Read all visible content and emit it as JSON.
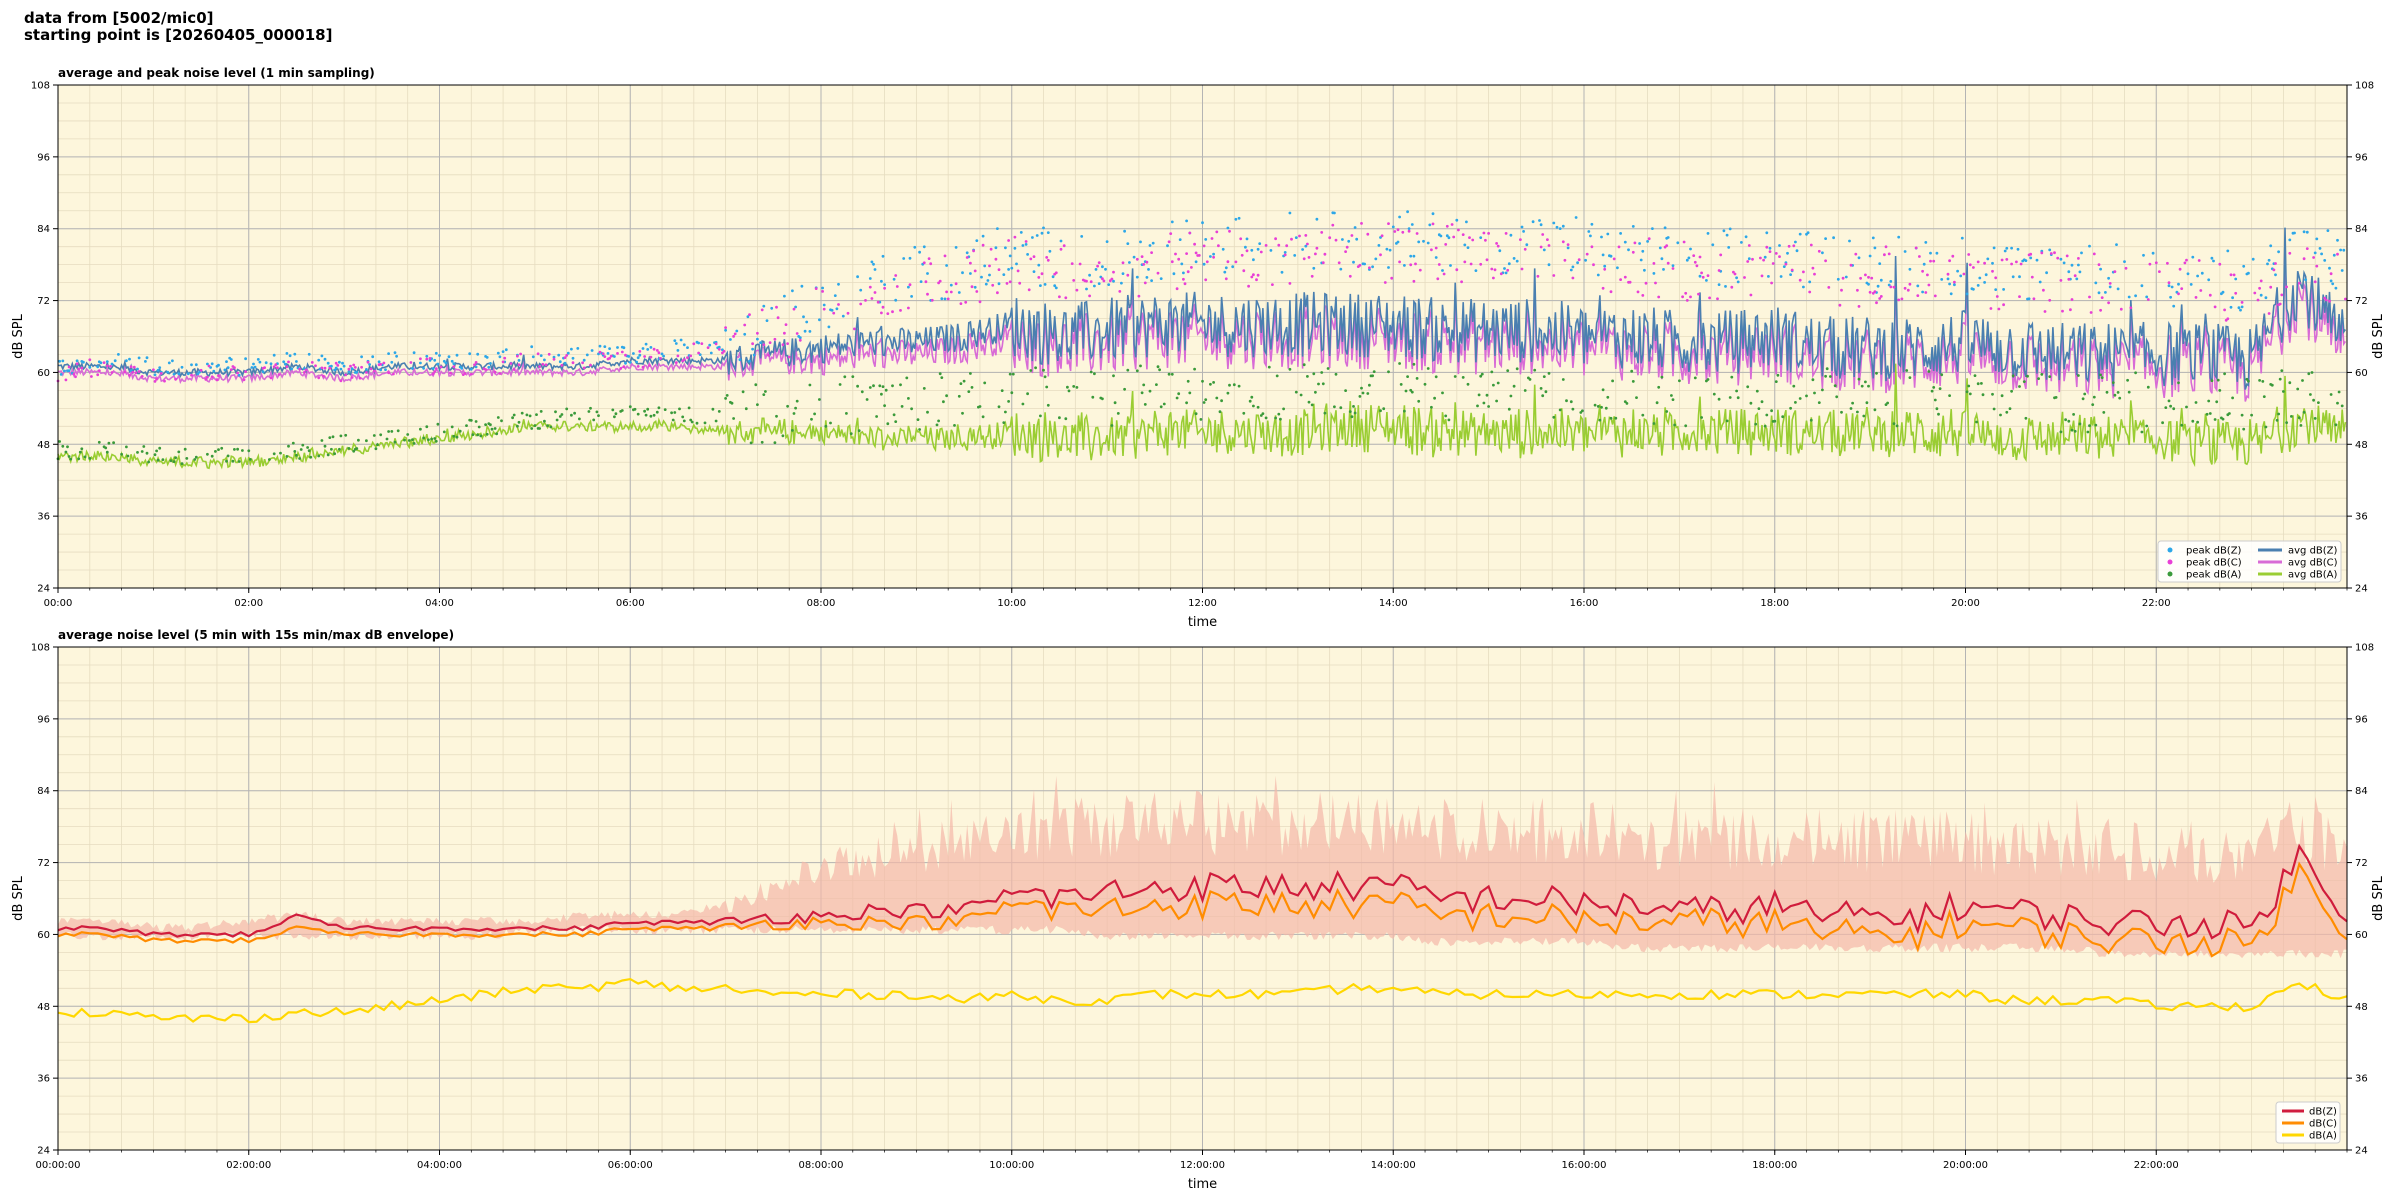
{
  "header": {
    "line1": "data from [5002/mic0]",
    "line2": "starting point is [20260405_000018]"
  },
  "colors": {
    "background": "#fdf6dc",
    "grid_major": "#b4b4b4",
    "grid_minor": "#e6dcc0",
    "peak_z": "#2ca7e8",
    "peak_c": "#e83fd6",
    "peak_a": "#3a9a3a",
    "avg_z": "#4a7fb0",
    "avg_c": "#d86bd6",
    "avg_a": "#9acd32",
    "dbz": "#d01c3c",
    "dbc": "#ff8c00",
    "dba": "#ffd700",
    "envelope": "#f4b8a8"
  },
  "chart_data": [
    {
      "type": "line",
      "title": "average and peak noise level (1 min sampling)",
      "xlabel": "time",
      "ylabel": "dB SPL",
      "ylim": [
        24,
        108
      ],
      "yticks": [
        "24",
        "36",
        "48",
        "60",
        "72",
        "84",
        "96",
        "108"
      ],
      "xticks": [
        "00:00",
        "02:00",
        "04:00",
        "06:00",
        "08:00",
        "10:00",
        "12:00",
        "14:00",
        "16:00",
        "18:00",
        "20:00",
        "22:00"
      ],
      "grid": true,
      "legend_position": "bottom-right",
      "x_hours": [
        0,
        0.5,
        1,
        1.5,
        2,
        2.5,
        3,
        3.5,
        4,
        4.5,
        5,
        5.5,
        6,
        6.5,
        7,
        7.5,
        8,
        8.5,
        9,
        9.5,
        10,
        10.5,
        11,
        11.5,
        12,
        12.5,
        13,
        13.5,
        14,
        14.5,
        15,
        15.5,
        16,
        16.5,
        17,
        17.5,
        18,
        18.5,
        19,
        19.5,
        20,
        20.5,
        21,
        21.5,
        22,
        22.5,
        23,
        23.5,
        24
      ],
      "series": [
        {
          "name": "peak dB(Z)",
          "kind": "scatter",
          "values": [
            61,
            62,
            61,
            61,
            61,
            62,
            61,
            62,
            62,
            62,
            63,
            63,
            63,
            64,
            65,
            68,
            72,
            75,
            76,
            78,
            80,
            79,
            78,
            80,
            81,
            81,
            82,
            82,
            82,
            82,
            81,
            81,
            81,
            80,
            79,
            79,
            80,
            78,
            78,
            78,
            78,
            77,
            77,
            77,
            76,
            76,
            75,
            80,
            78
          ]
        },
        {
          "name": "peak dB(C)",
          "kind": "scatter",
          "values": [
            60,
            61,
            60,
            60,
            60,
            61,
            60,
            61,
            61,
            61,
            62,
            62,
            62,
            63,
            64,
            66,
            70,
            73,
            74,
            76,
            78,
            77,
            76,
            78,
            79,
            79,
            80,
            80,
            80,
            80,
            79,
            79,
            79,
            78,
            77,
            77,
            78,
            76,
            76,
            76,
            76,
            75,
            75,
            75,
            74,
            74,
            73,
            78,
            76
          ]
        },
        {
          "name": "peak dB(A)",
          "kind": "scatter",
          "values": [
            47,
            47,
            46,
            46,
            46,
            47,
            48,
            49,
            50,
            51,
            52,
            53,
            53,
            53,
            53,
            53,
            54,
            55,
            55,
            55,
            56,
            56,
            56,
            57,
            57,
            57,
            57,
            57,
            57,
            57,
            57,
            57,
            56,
            56,
            56,
            56,
            56,
            56,
            56,
            56,
            56,
            55,
            55,
            55,
            55,
            55,
            55,
            56,
            55
          ]
        },
        {
          "name": "avg dB(Z)",
          "kind": "line",
          "values": [
            61,
            61,
            60,
            60,
            60,
            61,
            60,
            61,
            61,
            61,
            61,
            61,
            62,
            62,
            62,
            63,
            64,
            65,
            65,
            66,
            68,
            66,
            67,
            68,
            68,
            68,
            68,
            68,
            68,
            67,
            67,
            67,
            66,
            66,
            65,
            65,
            66,
            64,
            64,
            64,
            65,
            64,
            63,
            63,
            63,
            63,
            62,
            75,
            64
          ]
        },
        {
          "name": "avg dB(C)",
          "kind": "line",
          "values": [
            60,
            60,
            59,
            59,
            59,
            60,
            59,
            60,
            60,
            60,
            60,
            60,
            61,
            61,
            61,
            62,
            62,
            63,
            63,
            64,
            66,
            64,
            65,
            66,
            66,
            66,
            66,
            66,
            66,
            65,
            65,
            65,
            64,
            64,
            63,
            63,
            64,
            62,
            62,
            62,
            63,
            62,
            61,
            61,
            61,
            61,
            60,
            73,
            62
          ]
        },
        {
          "name": "avg dB(A)",
          "kind": "line",
          "values": [
            46,
            46,
            45,
            45,
            45,
            46,
            47,
            48,
            49,
            50,
            51,
            51,
            51,
            51,
            50,
            50,
            50,
            49,
            49,
            49,
            50,
            49,
            49,
            50,
            50,
            50,
            50,
            51,
            51,
            50,
            50,
            50,
            50,
            50,
            50,
            50,
            50,
            50,
            50,
            50,
            50,
            49,
            49,
            49,
            49,
            48,
            48,
            52,
            49
          ]
        }
      ]
    },
    {
      "type": "line",
      "title": "average noise level (5 min with 15s min/max dB envelope)",
      "xlabel": "time",
      "ylabel": "dB SPL",
      "ylim": [
        24,
        108
      ],
      "yticks": [
        "24",
        "36",
        "48",
        "60",
        "72",
        "84",
        "96",
        "108"
      ],
      "xticks": [
        "00:00:00",
        "02:00:00",
        "04:00:00",
        "06:00:00",
        "08:00:00",
        "10:00:00",
        "12:00:00",
        "14:00:00",
        "16:00:00",
        "18:00:00",
        "20:00:00",
        "22:00:00"
      ],
      "grid": true,
      "legend_position": "bottom-right",
      "x_hours": [
        0,
        0.5,
        1,
        1.5,
        2,
        2.5,
        3,
        3.5,
        4,
        4.5,
        5,
        5.5,
        6,
        6.5,
        7,
        7.5,
        8,
        8.5,
        9,
        9.5,
        10,
        10.5,
        11,
        11.5,
        12,
        12.5,
        13,
        13.5,
        14,
        14.5,
        15,
        15.5,
        16,
        16.5,
        17,
        17.5,
        18,
        18.5,
        19,
        19.5,
        20,
        20.5,
        21,
        21.5,
        22,
        22.5,
        23,
        23.5,
        24
      ],
      "envelope": {
        "min": [
          59,
          59,
          59,
          59,
          59,
          59,
          59,
          59,
          59,
          59,
          60,
          60,
          60,
          60,
          60,
          60,
          60,
          60,
          60,
          60,
          60,
          60,
          59,
          59,
          59,
          59,
          59,
          59,
          59,
          58,
          58,
          58,
          58,
          57,
          57,
          57,
          57,
          57,
          57,
          57,
          57,
          57,
          57,
          56,
          56,
          56,
          56,
          56,
          56
        ],
        "max": [
          63,
          63,
          62,
          62,
          63,
          64,
          63,
          63,
          63,
          63,
          63,
          64,
          64,
          64,
          66,
          70,
          74,
          76,
          78,
          80,
          82,
          83,
          83,
          84,
          84,
          84,
          84,
          84,
          84,
          83,
          83,
          83,
          83,
          82,
          82,
          82,
          82,
          81,
          81,
          81,
          81,
          80,
          80,
          80,
          79,
          79,
          78,
          85,
          80
        ]
      },
      "series": [
        {
          "name": "dB(Z)",
          "values": [
            61,
            61,
            60,
            60,
            60,
            63,
            61,
            61,
            61,
            61,
            61,
            61,
            62,
            62,
            62,
            63,
            63,
            64,
            64,
            64,
            67,
            66,
            67,
            68,
            68,
            68,
            68,
            68,
            68,
            66,
            66,
            66,
            65,
            65,
            64,
            64,
            65,
            63,
            63,
            63,
            65,
            64,
            63,
            62,
            62,
            62,
            61,
            73,
            64
          ]
        },
        {
          "name": "dB(C)",
          "values": [
            60,
            60,
            59,
            59,
            59,
            61,
            60,
            60,
            60,
            60,
            60,
            60,
            61,
            61,
            61,
            62,
            62,
            62,
            62,
            62,
            65,
            64,
            64,
            65,
            65,
            65,
            65,
            65,
            65,
            63,
            63,
            63,
            62,
            62,
            62,
            62,
            62,
            60,
            60,
            60,
            62,
            61,
            60,
            59,
            59,
            59,
            58,
            70,
            61
          ]
        },
        {
          "name": "dB(A)",
          "values": [
            47,
            47,
            46,
            46,
            46,
            47,
            47,
            48,
            49,
            50,
            51,
            51,
            52,
            51,
            51,
            50,
            50,
            50,
            50,
            49,
            50,
            49,
            49,
            50,
            50,
            50,
            50,
            51,
            51,
            50,
            50,
            50,
            50,
            50,
            50,
            50,
            50,
            50,
            50,
            50,
            50,
            49,
            49,
            49,
            48,
            48,
            48,
            52,
            49
          ]
        }
      ]
    }
  ]
}
